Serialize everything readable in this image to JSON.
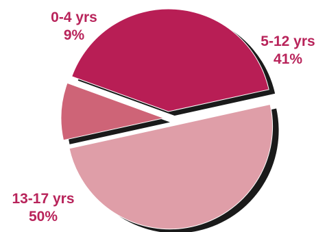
{
  "chart_data": {
    "type": "pie",
    "title": "",
    "slices": [
      {
        "label": "5-12 yrs",
        "value": 41,
        "value_label": "41%",
        "color": "#b81e55"
      },
      {
        "label": "13-17 yrs",
        "value": 50,
        "value_label": "50%",
        "color": "#df9ea8"
      },
      {
        "label": "0-4 yrs",
        "value": 9,
        "value_label": "9%",
        "color": "#ce6477"
      }
    ],
    "exploded": true,
    "shadow_color": "#1a1a1a",
    "label_color": "#b8235a",
    "legend": "none"
  }
}
